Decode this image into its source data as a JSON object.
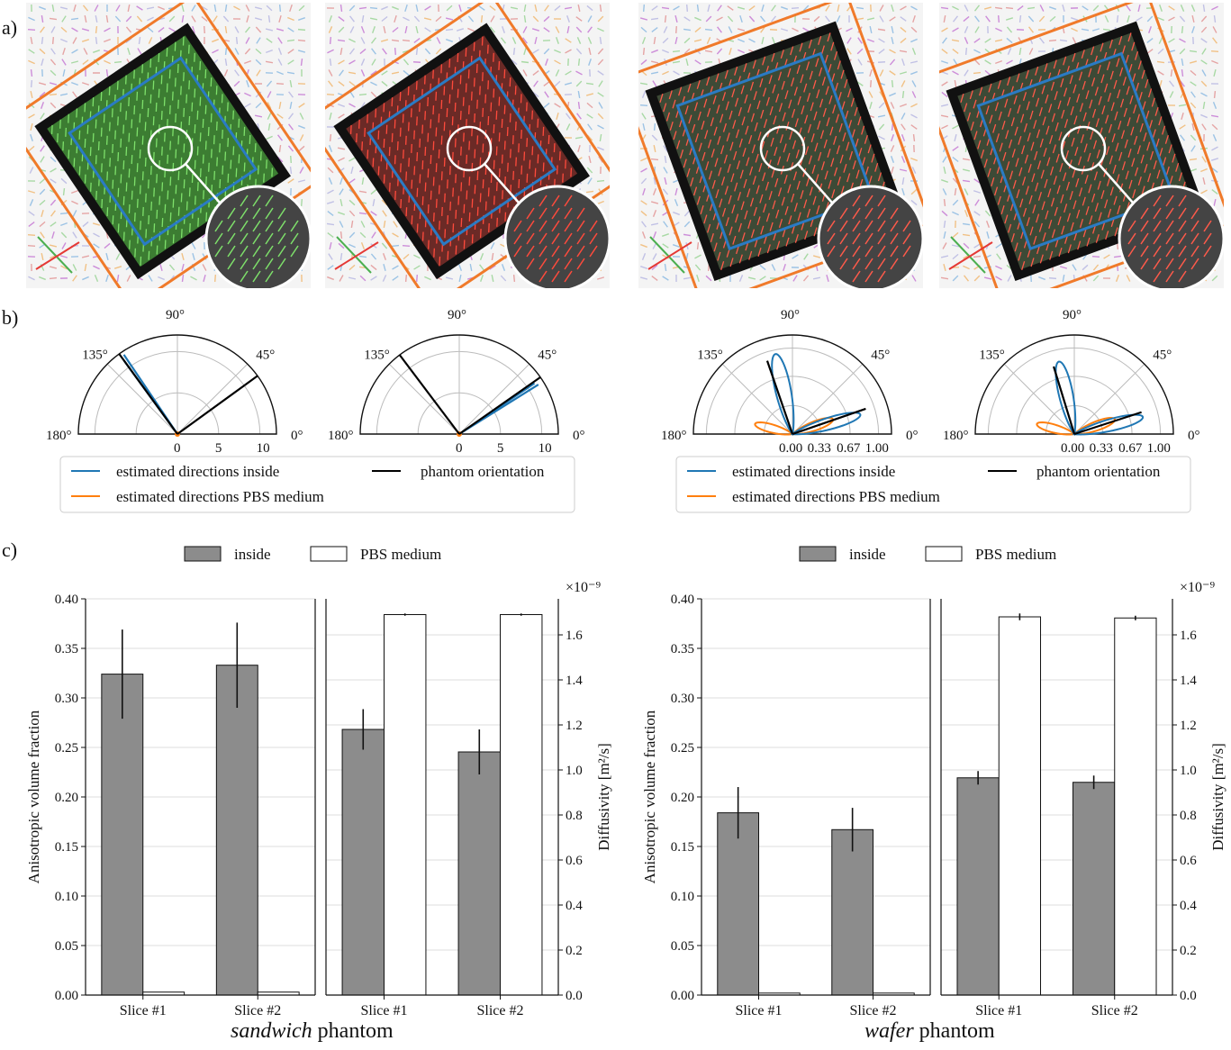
{
  "panel_labels": {
    "a": "a)",
    "b": "b)",
    "c": "c)"
  },
  "colors": {
    "inside_blue": "#1f77b4",
    "pbs_orange": "#ff7f0e",
    "phantom_black": "#000000",
    "bar_gray": "#8c8c8c",
    "bar_white": "#ffffff",
    "roi_orange": "#f07a2a",
    "roi_blue": "#2a7bc4",
    "vector_green": "#4caf50",
    "vector_red": "#e53935"
  },
  "images": [
    {
      "id": "sandwich-slice-1",
      "tint": "#3c7d32",
      "vector_color": "#7ee06b"
    },
    {
      "id": "sandwich-slice-2",
      "tint": "#6b2a26",
      "vector_color": "#ff4a3c"
    },
    {
      "id": "wafer-slice-1",
      "tint": "#3d4a36",
      "vector_color": "#ff5a4a"
    },
    {
      "id": "wafer-slice-2",
      "tint": "#3d4a36",
      "vector_color": "#ff5a4a"
    }
  ],
  "polar": {
    "angle_labels": [
      "180°",
      "135°",
      "90°",
      "45°",
      "0°"
    ],
    "sandwich_radial_ticks": [
      "0",
      "5",
      "10"
    ],
    "wafer_radial_ticks": [
      "0.00",
      "0.33",
      "0.67",
      "1.00"
    ],
    "legend": {
      "inside": "estimated directions inside",
      "pbs": "estimated directions PBS medium",
      "phantom": "phantom orientation"
    }
  },
  "chart_data": [
    {
      "type": "bar",
      "group": "sandwich phantom",
      "subplot": "left",
      "categories": [
        "Slice #1",
        "Slice #2"
      ],
      "ylabel": "Anisotropic volume fraction",
      "ylim": [
        0,
        0.4
      ],
      "yticks": [
        "0.00",
        "0.05",
        "0.10",
        "0.15",
        "0.20",
        "0.25",
        "0.30",
        "0.35",
        "0.40"
      ],
      "series": [
        {
          "name": "inside",
          "values": [
            0.324,
            0.333
          ],
          "errors": [
            0.045,
            0.043
          ]
        },
        {
          "name": "PBS medium",
          "values": [
            0.003,
            0.003
          ],
          "errors": [
            0,
            0
          ]
        }
      ]
    },
    {
      "type": "bar",
      "group": "sandwich phantom",
      "subplot": "right",
      "categories": [
        "Slice #1",
        "Slice #2"
      ],
      "ylabel": "Diffusivity [m²/s]",
      "ylim": [
        0,
        1.76
      ],
      "yticks": [
        "0.0",
        "0.2",
        "0.4",
        "0.6",
        "0.8",
        "1.0",
        "1.2",
        "1.4",
        "1.6"
      ],
      "scale_label": "×10⁻⁹",
      "series": [
        {
          "name": "inside",
          "values": [
            1.18,
            1.08
          ],
          "errors": [
            0.09,
            0.1
          ]
        },
        {
          "name": "PBS medium",
          "values": [
            1.69,
            1.69
          ],
          "errors": [
            0.005,
            0.005
          ]
        }
      ]
    },
    {
      "type": "bar",
      "group": "wafer phantom",
      "subplot": "left",
      "categories": [
        "Slice #1",
        "Slice #2"
      ],
      "ylabel": "Anisotropic volume fraction",
      "ylim": [
        0,
        0.4
      ],
      "yticks": [
        "0.00",
        "0.05",
        "0.10",
        "0.15",
        "0.20",
        "0.25",
        "0.30",
        "0.35",
        "0.40"
      ],
      "series": [
        {
          "name": "inside",
          "values": [
            0.184,
            0.167
          ],
          "errors": [
            0.026,
            0.022
          ]
        },
        {
          "name": "PBS medium",
          "values": [
            0.002,
            0.002
          ],
          "errors": [
            0,
            0
          ]
        }
      ]
    },
    {
      "type": "bar",
      "group": "wafer phantom",
      "subplot": "right",
      "categories": [
        "Slice #1",
        "Slice #2"
      ],
      "ylabel": "Diffusivity [m²/s]",
      "ylim": [
        0,
        1.76
      ],
      "yticks": [
        "0.0",
        "0.2",
        "0.4",
        "0.6",
        "0.8",
        "1.0",
        "1.2",
        "1.4",
        "1.6"
      ],
      "scale_label": "×10⁻⁹",
      "series": [
        {
          "name": "inside",
          "values": [
            0.965,
            0.945
          ],
          "errors": [
            0.03,
            0.03
          ]
        },
        {
          "name": "PBS medium",
          "values": [
            1.68,
            1.675
          ],
          "errors": [
            0.015,
            0.01
          ]
        }
      ]
    }
  ],
  "polar_data": [
    {
      "group": "sandwich",
      "rmax": 12,
      "inside_dirs": [
        {
          "angle": 124,
          "r": 11.6
        },
        {
          "angle": 126,
          "r": 11.0
        }
      ],
      "pbs_dirs": [],
      "phantom": [
        {
          "angle": 126,
          "r": 12
        },
        {
          "angle": 36,
          "r": 12
        }
      ]
    },
    {
      "group": "sandwich",
      "rmax": 12,
      "inside_dirs": [
        {
          "angle": 32,
          "r": 11.3
        },
        {
          "angle": 34,
          "r": 11.0
        }
      ],
      "pbs_dirs": [],
      "phantom": [
        {
          "angle": 127,
          "r": 12
        },
        {
          "angle": 35,
          "r": 12
        }
      ]
    },
    {
      "group": "wafer",
      "rmax": 1.15,
      "inside_lobes": [
        {
          "angle": 102,
          "r": 0.95,
          "w": 9
        },
        {
          "angle": 16,
          "r": 0.82,
          "w": 8
        }
      ],
      "pbs_lobes": [
        {
          "angle": 165,
          "r": 0.45,
          "w": 10
        },
        {
          "angle": 20,
          "r": 0.5,
          "w": 10
        }
      ],
      "phantom": [
        {
          "angle": 109,
          "r": 0.9
        },
        {
          "angle": 19,
          "r": 0.9
        }
      ]
    },
    {
      "group": "wafer",
      "rmax": 1.15,
      "inside_lobes": [
        {
          "angle": 102,
          "r": 0.86,
          "w": 9
        },
        {
          "angle": 14,
          "r": 0.82,
          "w": 8
        }
      ],
      "pbs_lobes": [
        {
          "angle": 165,
          "r": 0.45,
          "w": 10
        },
        {
          "angle": 20,
          "r": 0.5,
          "w": 10
        }
      ],
      "phantom": [
        {
          "angle": 107,
          "r": 0.82
        },
        {
          "angle": 18,
          "r": 0.82
        }
      ]
    }
  ],
  "bar_legend": {
    "inside": "inside",
    "pbs": "PBS medium"
  },
  "captions": {
    "sandwich_italic": "sandwich",
    "sandwich_rest": " phantom",
    "wafer_italic": "wafer",
    "wafer_rest": " phantom"
  }
}
